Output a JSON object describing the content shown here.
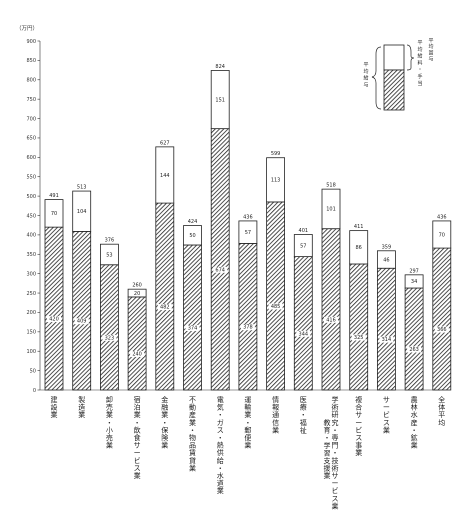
{
  "chart_data": {
    "type": "bar",
    "stacked": true,
    "unit_label": "（万円）",
    "ylim": [
      0,
      900
    ],
    "yticks": [
      0,
      50,
      100,
      150,
      200,
      250,
      300,
      350,
      400,
      450,
      500,
      550,
      600,
      650,
      700,
      750,
      800,
      850,
      900
    ],
    "categories": [
      "建設業",
      "製造業",
      "卸売業・小売業",
      "宿泊業・飲食サービス業",
      "金融業・保険業",
      "不動産業・物品賃貸業",
      "電気・ガス・熱供給・水道業",
      "運輸業・郵便業",
      "情報通信業",
      "医療・福祉",
      "学術研究・専門・技術サービス業／教育・学習支援業",
      "複合サービス事業",
      "サービス業",
      "農林水産・鉱業",
      "全体平均"
    ],
    "totals": [
      491,
      513,
      376,
      260,
      627,
      424,
      824,
      436,
      599,
      401,
      518,
      411,
      359,
      297,
      436
    ],
    "series": [
      {
        "values": [
          420,
          409,
          323,
          240,
          482,
          374,
          674,
          378,
          485,
          344,
          416,
          325,
          314,
          263,
          366
        ]
      },
      {
        "values": [
          70,
          104,
          53,
          20,
          144,
          50,
          151,
          57,
          113,
          57,
          101,
          86,
          46,
          34,
          70
        ]
      }
    ],
    "legend": {
      "upper_label": "平均賞与",
      "lower_label": "平均給与",
      "brace_label": "平均給料・手当"
    }
  }
}
